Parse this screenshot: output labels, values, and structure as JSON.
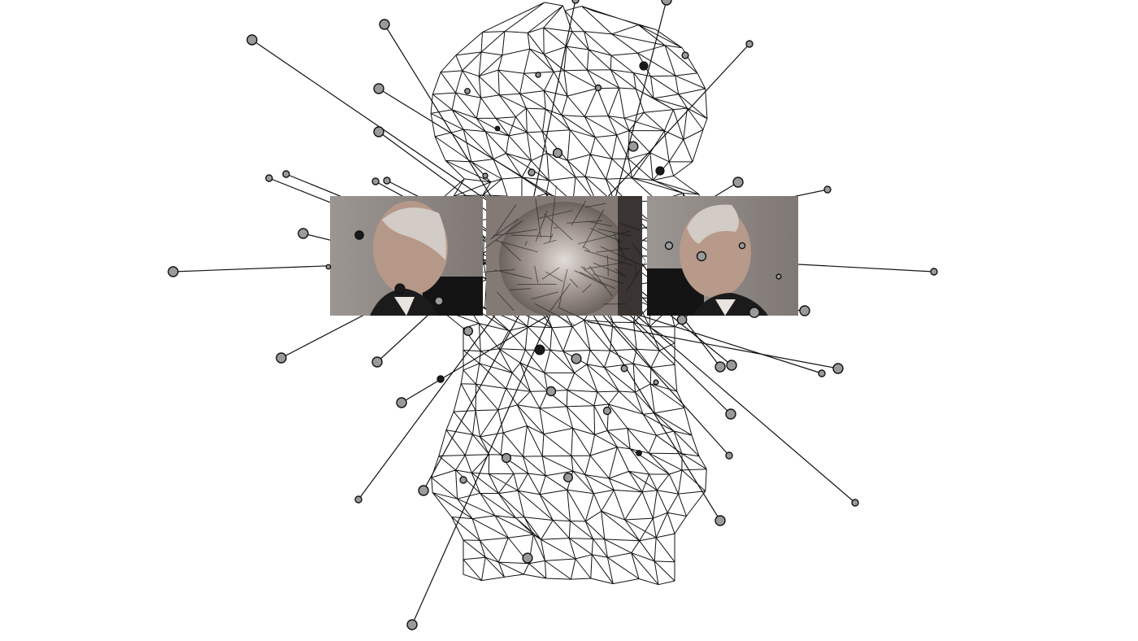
{
  "artwork": {
    "subject": "wireframe-head-with-face-photos",
    "palette": {
      "background": "#ffffff",
      "mesh_stroke": "#111111",
      "node_fill": "#9a9a9a",
      "node_dark_fill": "#1a1a1a",
      "photo_bg": "#8f8985",
      "photo_skin": "#b89a8a",
      "photo_hair": "#cfc7c2",
      "photo_jacket": "#141414"
    },
    "panels": [
      {
        "name": "face-photo-left-profile",
        "facing": "left"
      },
      {
        "name": "face-photo-front",
        "facing": "front"
      },
      {
        "name": "face-photo-right-profile",
        "facing": "right"
      }
    ]
  }
}
